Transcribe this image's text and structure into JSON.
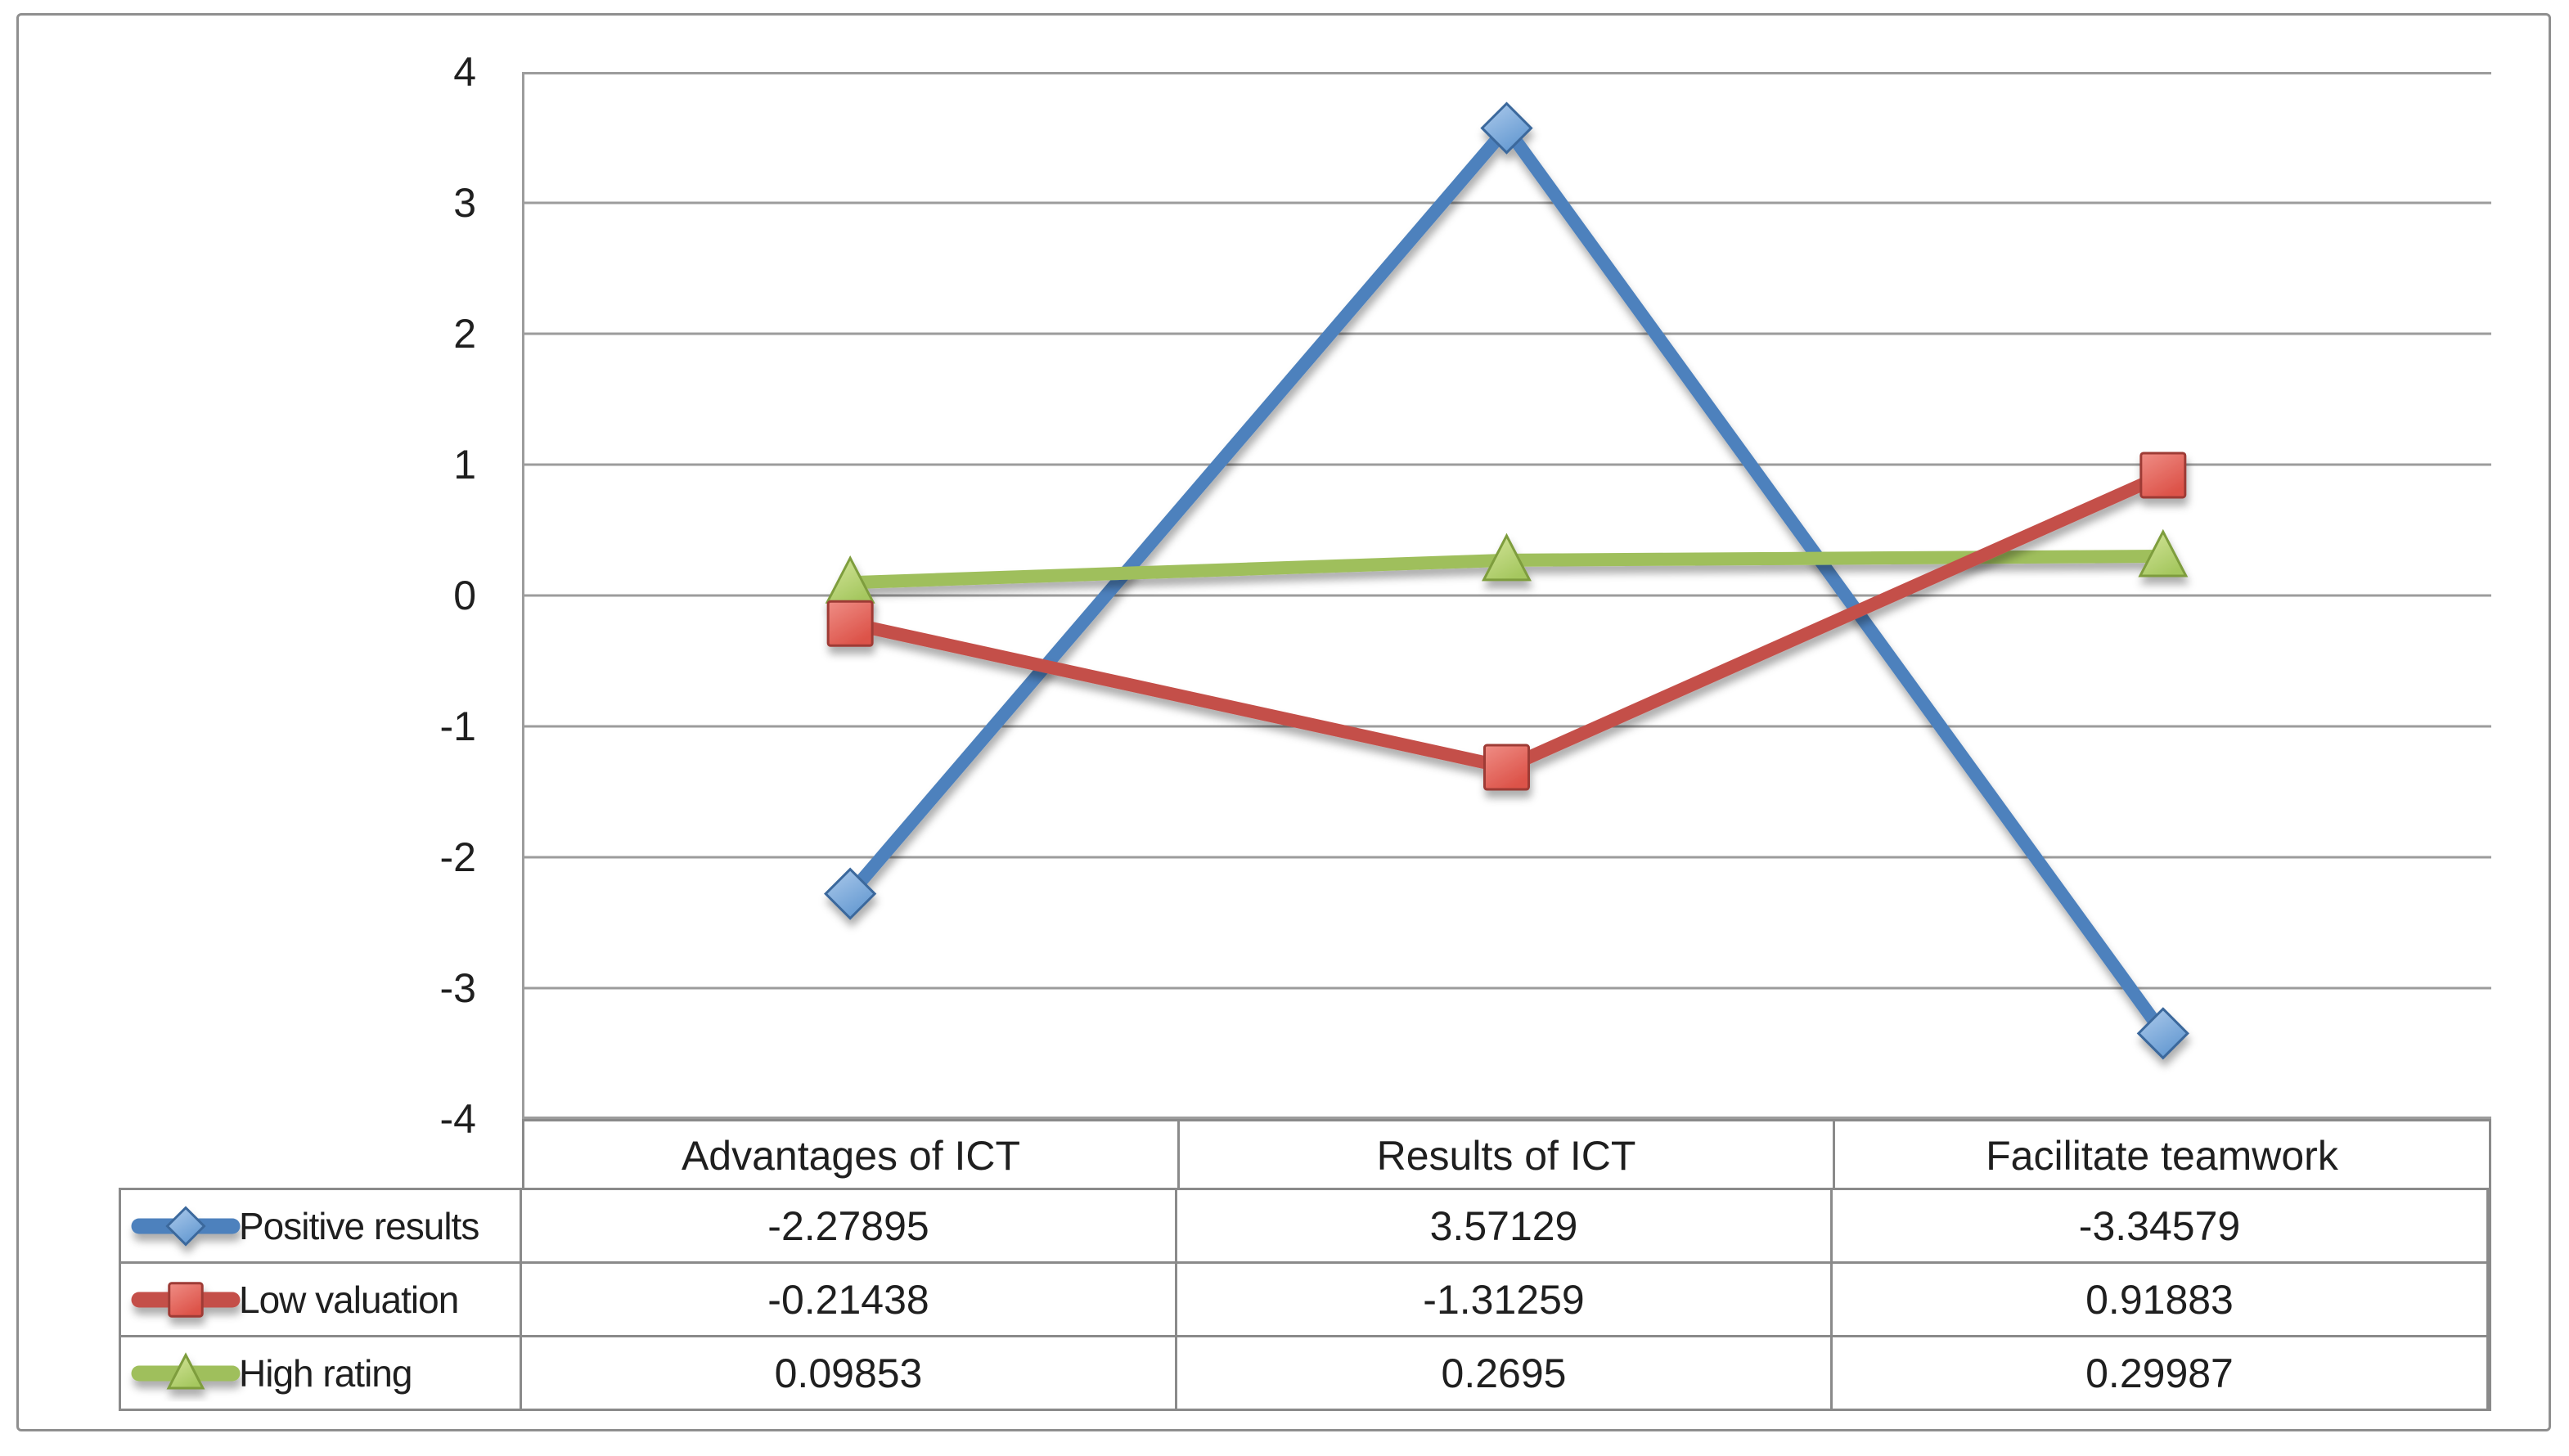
{
  "figure": {
    "background": "#ffffff",
    "border_color": "#8f8f8f",
    "gridline_color": "#9c9c9c",
    "table_border_color": "#8a8a8a",
    "text_color": "#1f1f1f"
  },
  "y_axis": {
    "ticks": [
      "4",
      "3",
      "2",
      "1",
      "0",
      "-1",
      "-2",
      "-3",
      "-4"
    ],
    "min": -4,
    "max": 4
  },
  "chart_data": {
    "type": "line",
    "title": "",
    "xlabel": "",
    "ylabel": "",
    "categories": [
      "Advantages of ICT",
      "Results of ICT",
      "Facilitate teamwork"
    ],
    "series": [
      {
        "name": "Positive results",
        "marker": "diamond",
        "values": [
          -2.27895,
          3.57129,
          -3.34579
        ],
        "line_color": "#4e81bd",
        "marker_fill_light": "#aecbec",
        "marker_fill_dark": "#6499d1",
        "marker_stroke": "#3a679c"
      },
      {
        "name": "Low valuation",
        "marker": "square",
        "values": [
          -0.21438,
          -1.31259,
          0.91883
        ],
        "line_color": "#c4504a",
        "marker_fill_light": "#ef8d85",
        "marker_fill_dark": "#dc5248",
        "marker_stroke": "#9e3b36"
      },
      {
        "name": "High rating",
        "marker": "triangle",
        "values": [
          0.09853,
          0.2695,
          0.29987
        ],
        "line_color": "#9fbf5b",
        "marker_fill_light": "#d4e59a",
        "marker_fill_dark": "#a5c75f",
        "marker_stroke": "#7e9d3e"
      }
    ],
    "z_order": [
      0,
      2,
      1
    ],
    "ylim": [
      -4,
      4
    ],
    "ytick_step": 1,
    "grid": true,
    "legend_position": "table-left"
  },
  "table": {
    "headers": [
      "Advantages of ICT",
      "Results of ICT",
      "Facilitate teamwork"
    ],
    "rows": [
      {
        "name": "Positive results",
        "values": [
          "-2.27895",
          "3.57129",
          "-3.34579"
        ]
      },
      {
        "name": "Low valuation",
        "values": [
          "-0.21438",
          "-1.31259",
          "0.91883"
        ]
      },
      {
        "name": "High rating",
        "values": [
          "0.09853",
          "0.2695",
          "0.29987"
        ]
      }
    ]
  }
}
